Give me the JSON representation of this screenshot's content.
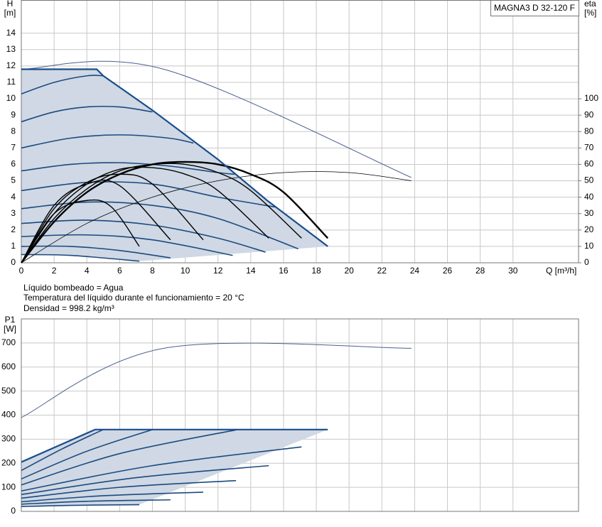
{
  "notes": [
    "Líquido bombeado = Agua",
    "Temperatura del líquido durante el funcionamiento = 20 °C",
    "Densidad = 998.2 kg/m³"
  ],
  "chart_data": [
    {
      "type": "line",
      "title": "MAGNA3 D 32-120 F",
      "ylabel": "H",
      "ylabel_unit": "[m]",
      "y2label": "eta",
      "y2label_unit": "[%]",
      "xlabel": "Q [m³/h]",
      "xlim": [
        0,
        34
      ],
      "xticks": [
        0,
        2,
        4,
        6,
        8,
        10,
        12,
        14,
        16,
        18,
        20,
        22,
        24,
        26,
        28,
        30
      ],
      "ylim": [
        0,
        16
      ],
      "yticks": [
        0,
        1,
        2,
        3,
        4,
        5,
        6,
        7,
        8,
        9,
        10,
        11,
        12,
        13,
        14
      ],
      "y2lim": [
        0,
        160
      ],
      "y2ticks": [
        0,
        10,
        20,
        30,
        40,
        50,
        60,
        70,
        80,
        90,
        100
      ],
      "grid": true,
      "shade_color": "#cfd8e4",
      "envelope": {
        "color": "#1b4d8c",
        "width": 2.2,
        "x": [
          0,
          4.6,
          5.0,
          8.0,
          12,
          15,
          18.7
        ],
        "values": [
          11.8,
          11.8,
          11.4,
          9.3,
          6.3,
          3.8,
          1.0
        ]
      },
      "series": [
        {
          "color": "#4a5f8f",
          "width": 1,
          "x": [
            0,
            8.7,
            23.8
          ],
          "values": [
            11.8,
            11.8,
            5.2
          ]
        },
        {
          "color": "#1b4a80",
          "width": 1.6,
          "x": [
            0,
            2,
            4,
            5
          ],
          "values": [
            10.3,
            11.0,
            11.4,
            11.4
          ]
        },
        {
          "color": "#1b4a80",
          "width": 1.6,
          "x": [
            0,
            2,
            4,
            6,
            8
          ],
          "values": [
            8.6,
            9.2,
            9.5,
            9.5,
            9.2
          ]
        },
        {
          "color": "#1b4a80",
          "width": 1.6,
          "x": [
            0,
            3,
            6,
            9,
            10.5
          ],
          "values": [
            7.0,
            7.6,
            7.8,
            7.6,
            7.3
          ]
        },
        {
          "color": "#1b4a80",
          "width": 1.6,
          "x": [
            0,
            3,
            6,
            9,
            12,
            13
          ],
          "values": [
            5.6,
            6.0,
            6.1,
            5.9,
            5.5,
            5.4
          ]
        },
        {
          "color": "#1b4a80",
          "width": 1.6,
          "x": [
            0,
            4,
            8,
            12,
            15.5
          ],
          "values": [
            4.4,
            4.9,
            4.8,
            4.0,
            3.4
          ]
        },
        {
          "color": "#1b4a80",
          "width": 1.6,
          "x": [
            0,
            4,
            8,
            12,
            16.9
          ],
          "values": [
            3.3,
            3.7,
            3.5,
            2.7,
            0.85
          ]
        },
        {
          "color": "#1b4a80",
          "width": 1.6,
          "x": [
            0,
            4,
            8,
            12,
            14.9
          ],
          "values": [
            2.4,
            2.6,
            2.3,
            1.5,
            0.65
          ]
        },
        {
          "color": "#1b4a80",
          "width": 1.6,
          "x": [
            0,
            4,
            8,
            12.9
          ],
          "values": [
            1.6,
            1.7,
            1.4,
            0.45
          ]
        },
        {
          "color": "#1b4a80",
          "width": 1.6,
          "x": [
            0,
            3,
            6,
            9.1
          ],
          "values": [
            1.0,
            1.0,
            0.75,
            0.3
          ]
        },
        {
          "color": "#1b4a80",
          "width": 1.6,
          "x": [
            0,
            3,
            7.2
          ],
          "values": [
            0.5,
            0.45,
            0.1
          ]
        },
        {
          "color": "#000000",
          "width": 0.8,
          "axis": "y2",
          "x": [
            0,
            4,
            8,
            12,
            16,
            20,
            23.8
          ],
          "values": [
            0,
            24,
            40,
            50,
            55,
            55,
            50
          ]
        },
        {
          "color": "#000000",
          "width": 1.4,
          "axis": "y2",
          "x": [
            0,
            2,
            4,
            5.5,
            7.2
          ],
          "values": [
            0,
            30,
            38,
            34,
            10
          ]
        },
        {
          "color": "#000000",
          "width": 1.4,
          "axis": "y2",
          "x": [
            0,
            2,
            4,
            6,
            9.1
          ],
          "values": [
            0,
            35,
            48,
            47,
            14
          ]
        },
        {
          "color": "#000000",
          "width": 1.4,
          "axis": "y2",
          "x": [
            0,
            2,
            4,
            6,
            8,
            11.1
          ],
          "values": [
            0,
            33,
            49,
            54,
            48,
            14
          ]
        },
        {
          "color": "#000000",
          "width": 1.4,
          "axis": "y2",
          "x": [
            0,
            2,
            4,
            6,
            8,
            10,
            12,
            15.1
          ],
          "values": [
            0,
            30,
            48,
            57,
            58,
            54,
            44,
            15
          ]
        },
        {
          "color": "#000000",
          "width": 1.4,
          "axis": "y2",
          "x": [
            0,
            2,
            4,
            6,
            8,
            10,
            12,
            14,
            17.1
          ],
          "values": [
            0,
            27,
            45,
            56,
            60,
            60,
            55,
            44,
            15
          ]
        },
        {
          "color": "#000000",
          "width": 2.4,
          "axis": "y2",
          "x": [
            0,
            2,
            4,
            6,
            8,
            10,
            12,
            14,
            16,
            18.7
          ],
          "values": [
            0,
            25,
            43,
            54,
            60,
            61.5,
            60,
            54,
            43,
            15
          ]
        }
      ]
    },
    {
      "type": "line",
      "ylabel": "P1",
      "ylabel_unit": "[W]",
      "xlim": [
        0,
        34
      ],
      "xticks": [
        0,
        2,
        4,
        6,
        8,
        10,
        12,
        14,
        16,
        18,
        20,
        22,
        24,
        26,
        28,
        30
      ],
      "show_xtick_labels": false,
      "ylim": [
        0,
        800
      ],
      "yticks": [
        0,
        100,
        200,
        300,
        400,
        500,
        600,
        700
      ],
      "grid": true,
      "shade_color": "#cfd8e4",
      "envelope": {
        "color": "#1b4d8c",
        "width": 2.2,
        "x": [
          0,
          4.5,
          18.7
        ],
        "values": [
          205,
          340,
          340
        ]
      },
      "series": [
        {
          "color": "#4a5f8f",
          "width": 1,
          "x": [
            0,
            8.7,
            23.8
          ],
          "values": [
            390,
            678,
            678
          ]
        },
        {
          "color": "#1b4a80",
          "width": 1.6,
          "x": [
            0,
            2.5,
            5
          ],
          "values": [
            170,
            260,
            340
          ]
        },
        {
          "color": "#1b4a80",
          "width": 1.6,
          "x": [
            0,
            4,
            8
          ],
          "values": [
            135,
            250,
            340
          ]
        },
        {
          "color": "#1b4a80",
          "width": 1.6,
          "x": [
            0,
            6,
            13.2
          ],
          "values": [
            110,
            240,
            340
          ]
        },
        {
          "color": "#1b4a80",
          "width": 1.6,
          "x": [
            0,
            8,
            17.1
          ],
          "values": [
            85,
            190,
            268
          ]
        },
        {
          "color": "#1b4a80",
          "width": 1.6,
          "x": [
            0,
            7,
            15.1
          ],
          "values": [
            70,
            140,
            190
          ]
        },
        {
          "color": "#1b4a80",
          "width": 1.6,
          "x": [
            0,
            6,
            13.1
          ],
          "values": [
            55,
            100,
            128
          ]
        },
        {
          "color": "#1b4a80",
          "width": 1.6,
          "x": [
            0,
            5,
            11.1
          ],
          "values": [
            40,
            65,
            80
          ]
        },
        {
          "color": "#1b4a80",
          "width": 1.6,
          "x": [
            0,
            4,
            9.1
          ],
          "values": [
            30,
            42,
            48
          ]
        },
        {
          "color": "#1b4a80",
          "width": 1.6,
          "x": [
            0,
            3,
            7.2
          ],
          "values": [
            20,
            25,
            28
          ]
        }
      ]
    }
  ]
}
